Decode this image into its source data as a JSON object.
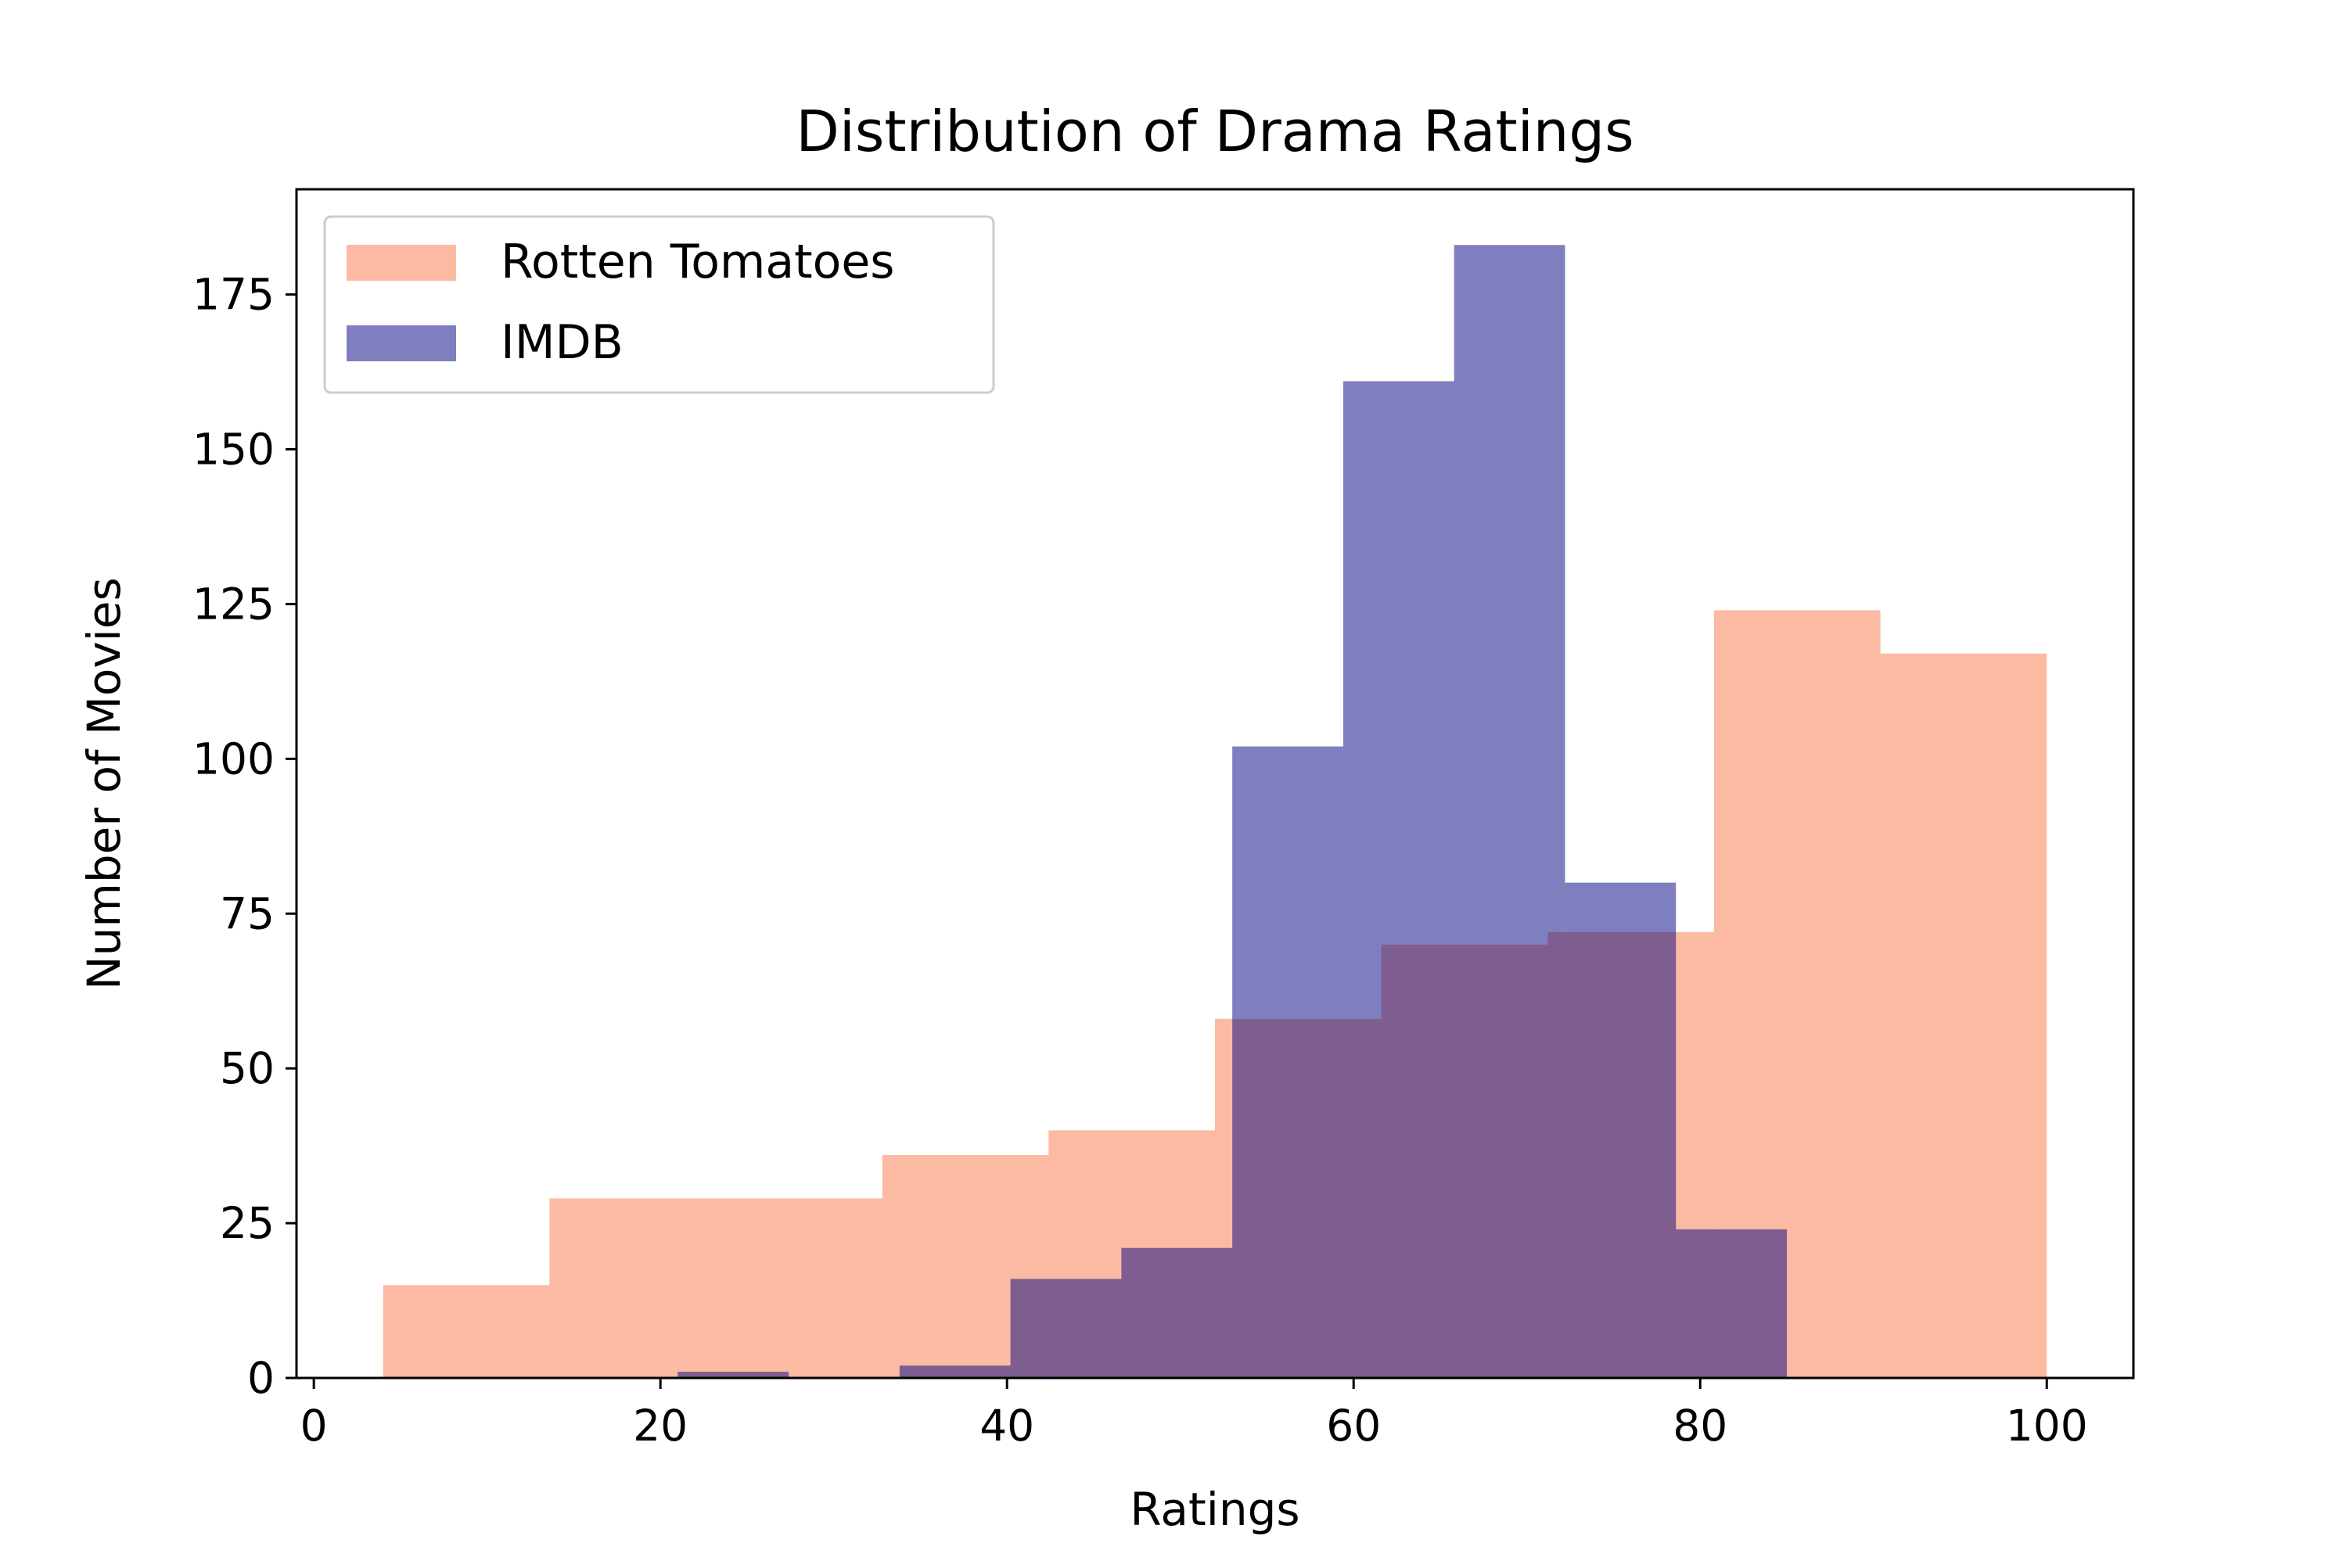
{
  "chart_data": {
    "type": "histogram",
    "title": "Distribution of Drama Ratings",
    "xlabel": "Ratings",
    "ylabel": "Number of Movies",
    "xlim": [
      -1,
      105
    ],
    "ylim": [
      0,
      192
    ],
    "xticks": [
      0,
      20,
      40,
      60,
      80,
      100
    ],
    "yticks": [
      0,
      25,
      50,
      75,
      100,
      125,
      150,
      175
    ],
    "legend": {
      "position": "top-left"
    },
    "grid": false,
    "series": [
      {
        "name": "Rotten Tomatoes",
        "color": "#fa8c64",
        "opacity": 0.6,
        "bin_edges": [
          4.0,
          13.6,
          23.2,
          32.8,
          42.4,
          52.0,
          61.6,
          71.2,
          80.8,
          90.4,
          100.0
        ],
        "counts": [
          15,
          29,
          29,
          36,
          40,
          58,
          70,
          72,
          124,
          117
        ]
      },
      {
        "name": "IMDB",
        "color": "#000080",
        "opacity": 0.5,
        "bin_edges": [
          21.0,
          27.4,
          33.8,
          40.2,
          46.6,
          53.0,
          59.4,
          65.8,
          72.2,
          78.6,
          85.0
        ],
        "counts": [
          1,
          0,
          2,
          16,
          21,
          102,
          161,
          183,
          80,
          24
        ]
      }
    ]
  }
}
